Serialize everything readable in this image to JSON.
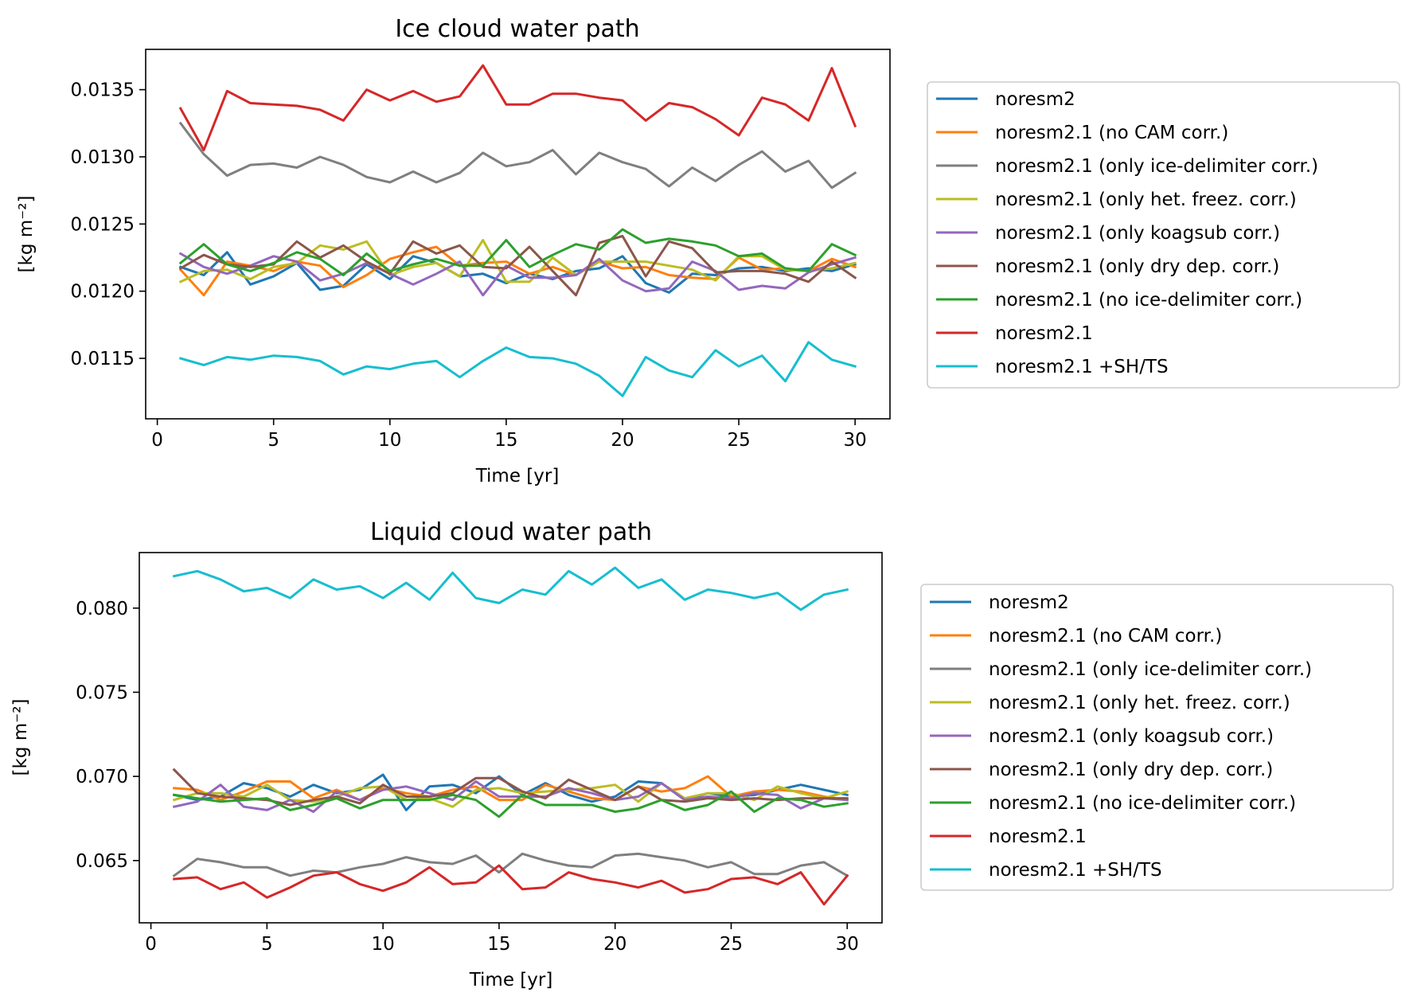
{
  "colors": {
    "noresm2": "#1f77b4",
    "noresm2.1 (no CAM corr.)": "#ff7f0e",
    "noresm2.1 (only ice-delimiter corr.)": "#7f7f7f",
    "noresm2.1 (only het. freez. corr.)": "#bcbd22",
    "noresm2.1 (only koagsub corr.)": "#9467bd",
    "noresm2.1 (only dry dep. corr.)": "#8c564b",
    "noresm2.1 (no ice-delimiter corr.)": "#2ca02c",
    "noresm2.1": "#d62728",
    "noresm2.1 +SH/TS": "#17becf"
  },
  "chart_data": [
    {
      "type": "line",
      "title": "Ice cloud water path",
      "xlabel": "Time [yr]",
      "ylabel": "[kg m⁻²]",
      "xlim": [
        -0.5,
        31.5
      ],
      "ylim": [
        0.01105,
        0.0138
      ],
      "xticks": [
        0,
        5,
        10,
        15,
        20,
        25,
        30
      ],
      "xtick_labels": [
        "0",
        "5",
        "10",
        "15",
        "20",
        "25",
        "30"
      ],
      "yticks": [
        0.0115,
        0.012,
        0.0125,
        0.013,
        0.0135
      ],
      "ytick_labels": [
        "0.0115",
        "0.0120",
        "0.0125",
        "0.0130",
        "0.0135"
      ],
      "grid": false,
      "legend": "outside-right",
      "x": [
        1,
        2,
        3,
        4,
        5,
        6,
        7,
        8,
        9,
        10,
        11,
        12,
        13,
        14,
        15,
        16,
        17,
        18,
        19,
        20,
        21,
        22,
        23,
        24,
        25,
        26,
        27,
        28,
        29,
        30
      ],
      "series": [
        {
          "name": "noresm2",
          "values": [
            0.01218,
            0.01212,
            0.01229,
            0.01205,
            0.01211,
            0.01221,
            0.01201,
            0.01204,
            0.0122,
            0.01209,
            0.01226,
            0.01221,
            0.01211,
            0.01213,
            0.01206,
            0.01213,
            0.01209,
            0.01215,
            0.01217,
            0.01226,
            0.01206,
            0.01199,
            0.01213,
            0.01212,
            0.01217,
            0.01218,
            0.01215,
            0.01217,
            0.01215,
            0.0122
          ]
        },
        {
          "name": "noresm2.1 (no CAM corr.)",
          "values": [
            0.01216,
            0.01197,
            0.01222,
            0.01219,
            0.01215,
            0.01222,
            0.01219,
            0.01203,
            0.01212,
            0.01224,
            0.01229,
            0.01233,
            0.01219,
            0.01221,
            0.01222,
            0.01213,
            0.01218,
            0.01212,
            0.01222,
            0.01217,
            0.01218,
            0.01212,
            0.0121,
            0.01209,
            0.01225,
            0.01216,
            0.01217,
            0.01215,
            0.01224,
            0.01218
          ]
        },
        {
          "name": "noresm2.1 (only ice-delimiter corr.)",
          "values": [
            0.01325,
            0.01302,
            0.01286,
            0.01294,
            0.01295,
            0.01292,
            0.013,
            0.01294,
            0.01285,
            0.01281,
            0.01289,
            0.01281,
            0.01288,
            0.01303,
            0.01293,
            0.01296,
            0.01305,
            0.01287,
            0.01303,
            0.01296,
            0.01291,
            0.01278,
            0.01292,
            0.01282,
            0.01294,
            0.01304,
            0.01289,
            0.01297,
            0.01277,
            0.01288
          ]
        },
        {
          "name": "noresm2.1 (only het. freez. corr.)",
          "values": [
            0.01207,
            0.01215,
            0.01216,
            0.01209,
            0.01218,
            0.01221,
            0.01234,
            0.01231,
            0.01237,
            0.01212,
            0.01218,
            0.01221,
            0.01211,
            0.01238,
            0.01207,
            0.01207,
            0.01225,
            0.01212,
            0.01222,
            0.01222,
            0.01222,
            0.01219,
            0.01216,
            0.01208,
            0.01226,
            0.01226,
            0.01216,
            0.01215,
            0.01217,
            0.01221
          ]
        },
        {
          "name": "noresm2.1 (only koagsub corr.)",
          "values": [
            0.01228,
            0.01218,
            0.01213,
            0.01219,
            0.01226,
            0.01222,
            0.01208,
            0.01213,
            0.01221,
            0.01213,
            0.01205,
            0.01213,
            0.01222,
            0.01197,
            0.01219,
            0.0121,
            0.0121,
            0.01212,
            0.01224,
            0.01208,
            0.012,
            0.01202,
            0.01222,
            0.01215,
            0.01201,
            0.01204,
            0.01202,
            0.01214,
            0.0122,
            0.01225
          ]
        },
        {
          "name": "noresm2.1 (only dry dep. corr.)",
          "values": [
            0.01217,
            0.01227,
            0.0122,
            0.01218,
            0.0122,
            0.01237,
            0.01225,
            0.01234,
            0.01222,
            0.01213,
            0.01237,
            0.01228,
            0.01234,
            0.01218,
            0.01217,
            0.01233,
            0.01215,
            0.01197,
            0.01236,
            0.01241,
            0.01211,
            0.01237,
            0.01232,
            0.01214,
            0.01215,
            0.01215,
            0.01213,
            0.01207,
            0.01222,
            0.0121
          ]
        },
        {
          "name": "noresm2.1 (no ice-delimiter corr.)",
          "values": [
            0.01221,
            0.01235,
            0.0122,
            0.01215,
            0.01221,
            0.01229,
            0.01224,
            0.01212,
            0.01228,
            0.01215,
            0.0122,
            0.01224,
            0.01219,
            0.01219,
            0.01238,
            0.01218,
            0.01227,
            0.01235,
            0.01231,
            0.01246,
            0.01236,
            0.01239,
            0.01237,
            0.01234,
            0.01226,
            0.01228,
            0.01217,
            0.01215,
            0.01235,
            0.01227
          ]
        },
        {
          "name": "noresm2.1",
          "values": [
            0.01336,
            0.01305,
            0.01349,
            0.0134,
            0.01339,
            0.01338,
            0.01335,
            0.01327,
            0.0135,
            0.01342,
            0.01349,
            0.01341,
            0.01345,
            0.01368,
            0.01339,
            0.01339,
            0.01347,
            0.01347,
            0.01344,
            0.01342,
            0.01327,
            0.0134,
            0.01337,
            0.01328,
            0.01316,
            0.01344,
            0.01339,
            0.01327,
            0.01366,
            0.01323
          ]
        },
        {
          "name": "noresm2.1 +SH/TS",
          "values": [
            0.0115,
            0.01145,
            0.01151,
            0.01149,
            0.01152,
            0.01151,
            0.01148,
            0.01138,
            0.01144,
            0.01142,
            0.01146,
            0.01148,
            0.01136,
            0.01148,
            0.01158,
            0.01151,
            0.0115,
            0.01146,
            0.01137,
            0.01122,
            0.01151,
            0.01141,
            0.01136,
            0.01156,
            0.01144,
            0.01152,
            0.01133,
            0.01162,
            0.01149,
            0.01144
          ]
        }
      ]
    },
    {
      "type": "line",
      "title": "Liquid cloud water path",
      "xlabel": "Time [yr]",
      "ylabel": "[kg m⁻²]",
      "xlim": [
        -0.5,
        31.5
      ],
      "ylim": [
        0.0613,
        0.0833
      ],
      "xticks": [
        0,
        5,
        10,
        15,
        20,
        25,
        30
      ],
      "xtick_labels": [
        "0",
        "5",
        "10",
        "15",
        "20",
        "25",
        "30"
      ],
      "yticks": [
        0.065,
        0.07,
        0.075,
        0.08
      ],
      "ytick_labels": [
        "0.065",
        "0.070",
        "0.075",
        "0.080"
      ],
      "grid": false,
      "legend": "outside-right",
      "x": [
        1,
        2,
        3,
        4,
        5,
        6,
        7,
        8,
        9,
        10,
        11,
        12,
        13,
        14,
        15,
        16,
        17,
        18,
        19,
        20,
        21,
        22,
        23,
        24,
        25,
        26,
        27,
        28,
        29,
        30
      ],
      "series": [
        {
          "name": "noresm2",
          "values": [
            0.0689,
            0.0686,
            0.0688,
            0.0696,
            0.0693,
            0.0688,
            0.0695,
            0.069,
            0.0692,
            0.0701,
            0.068,
            0.0694,
            0.0695,
            0.069,
            0.07,
            0.0689,
            0.0696,
            0.0689,
            0.0685,
            0.0688,
            0.0697,
            0.0696,
            0.0686,
            0.069,
            0.0688,
            0.0689,
            0.0692,
            0.0695,
            0.0692,
            0.0689
          ]
        },
        {
          "name": "noresm2.1 (no CAM corr.)",
          "values": [
            0.0693,
            0.0692,
            0.0686,
            0.0691,
            0.0697,
            0.0697,
            0.0687,
            0.0692,
            0.0686,
            0.0693,
            0.069,
            0.0688,
            0.0692,
            0.0694,
            0.0686,
            0.0686,
            0.0695,
            0.0691,
            0.0687,
            0.0686,
            0.0694,
            0.0691,
            0.0693,
            0.07,
            0.0688,
            0.0691,
            0.0692,
            0.0691,
            0.0688,
            0.0686
          ]
        },
        {
          "name": "noresm2.1 (only ice-delimiter corr.)",
          "values": [
            0.0641,
            0.0651,
            0.0649,
            0.0646,
            0.0646,
            0.0641,
            0.0644,
            0.0643,
            0.0646,
            0.0648,
            0.0652,
            0.0649,
            0.0648,
            0.0653,
            0.0643,
            0.0654,
            0.065,
            0.0647,
            0.0646,
            0.0653,
            0.0654,
            0.0652,
            0.065,
            0.0646,
            0.0649,
            0.0642,
            0.0642,
            0.0647,
            0.0649,
            0.0641
          ]
        },
        {
          "name": "noresm2.1 (only het. freez. corr.)",
          "values": [
            0.0686,
            0.069,
            0.069,
            0.0688,
            0.0695,
            0.0686,
            0.0685,
            0.0688,
            0.0693,
            0.0694,
            0.0686,
            0.0687,
            0.0682,
            0.0692,
            0.0693,
            0.069,
            0.0691,
            0.0692,
            0.0693,
            0.0695,
            0.0685,
            0.0696,
            0.0687,
            0.069,
            0.069,
            0.0686,
            0.0694,
            0.069,
            0.0687,
            0.0691
          ]
        },
        {
          "name": "noresm2.1 (only koagsub corr.)",
          "values": [
            0.0682,
            0.0685,
            0.0695,
            0.0682,
            0.068,
            0.0686,
            0.0679,
            0.0691,
            0.0686,
            0.0692,
            0.0694,
            0.069,
            0.0686,
            0.0697,
            0.0688,
            0.0688,
            0.0688,
            0.0693,
            0.069,
            0.0686,
            0.0688,
            0.0696,
            0.0686,
            0.0688,
            0.0687,
            0.069,
            0.0689,
            0.0681,
            0.0687,
            0.0686
          ]
        },
        {
          "name": "noresm2.1 (only dry dep. corr.)",
          "values": [
            0.0704,
            0.069,
            0.0688,
            0.0687,
            0.0686,
            0.0683,
            0.0686,
            0.0688,
            0.0684,
            0.0695,
            0.0688,
            0.0688,
            0.069,
            0.0699,
            0.0699,
            0.0691,
            0.0687,
            0.0698,
            0.0692,
            0.0686,
            0.0694,
            0.0686,
            0.0685,
            0.0687,
            0.0686,
            0.0687,
            0.0686,
            0.0687,
            0.0687,
            0.0687
          ]
        },
        {
          "name": "noresm2.1 (no ice-delimiter corr.)",
          "values": [
            0.0689,
            0.0687,
            0.0685,
            0.0686,
            0.0687,
            0.068,
            0.0683,
            0.0687,
            0.0681,
            0.0686,
            0.0686,
            0.0686,
            0.0689,
            0.0686,
            0.0676,
            0.0689,
            0.0683,
            0.0683,
            0.0683,
            0.0679,
            0.0681,
            0.0686,
            0.068,
            0.0683,
            0.0691,
            0.0679,
            0.0687,
            0.0686,
            0.0682,
            0.0684
          ]
        },
        {
          "name": "noresm2.1",
          "values": [
            0.0639,
            0.064,
            0.0633,
            0.0637,
            0.0628,
            0.0634,
            0.0641,
            0.0643,
            0.0636,
            0.0632,
            0.0637,
            0.0646,
            0.0636,
            0.0637,
            0.0647,
            0.0633,
            0.0634,
            0.0643,
            0.0639,
            0.0637,
            0.0634,
            0.0638,
            0.0631,
            0.0633,
            0.0639,
            0.064,
            0.0636,
            0.0643,
            0.0624,
            0.0641
          ]
        },
        {
          "name": "noresm2.1 +SH/TS",
          "values": [
            0.0819,
            0.0822,
            0.0817,
            0.081,
            0.0812,
            0.0806,
            0.0817,
            0.0811,
            0.0813,
            0.0806,
            0.0815,
            0.0805,
            0.0821,
            0.0806,
            0.0803,
            0.0811,
            0.0808,
            0.0822,
            0.0814,
            0.0824,
            0.0812,
            0.0817,
            0.0805,
            0.0811,
            0.0809,
            0.0806,
            0.0809,
            0.0799,
            0.0808,
            0.0811
          ]
        }
      ]
    }
  ]
}
